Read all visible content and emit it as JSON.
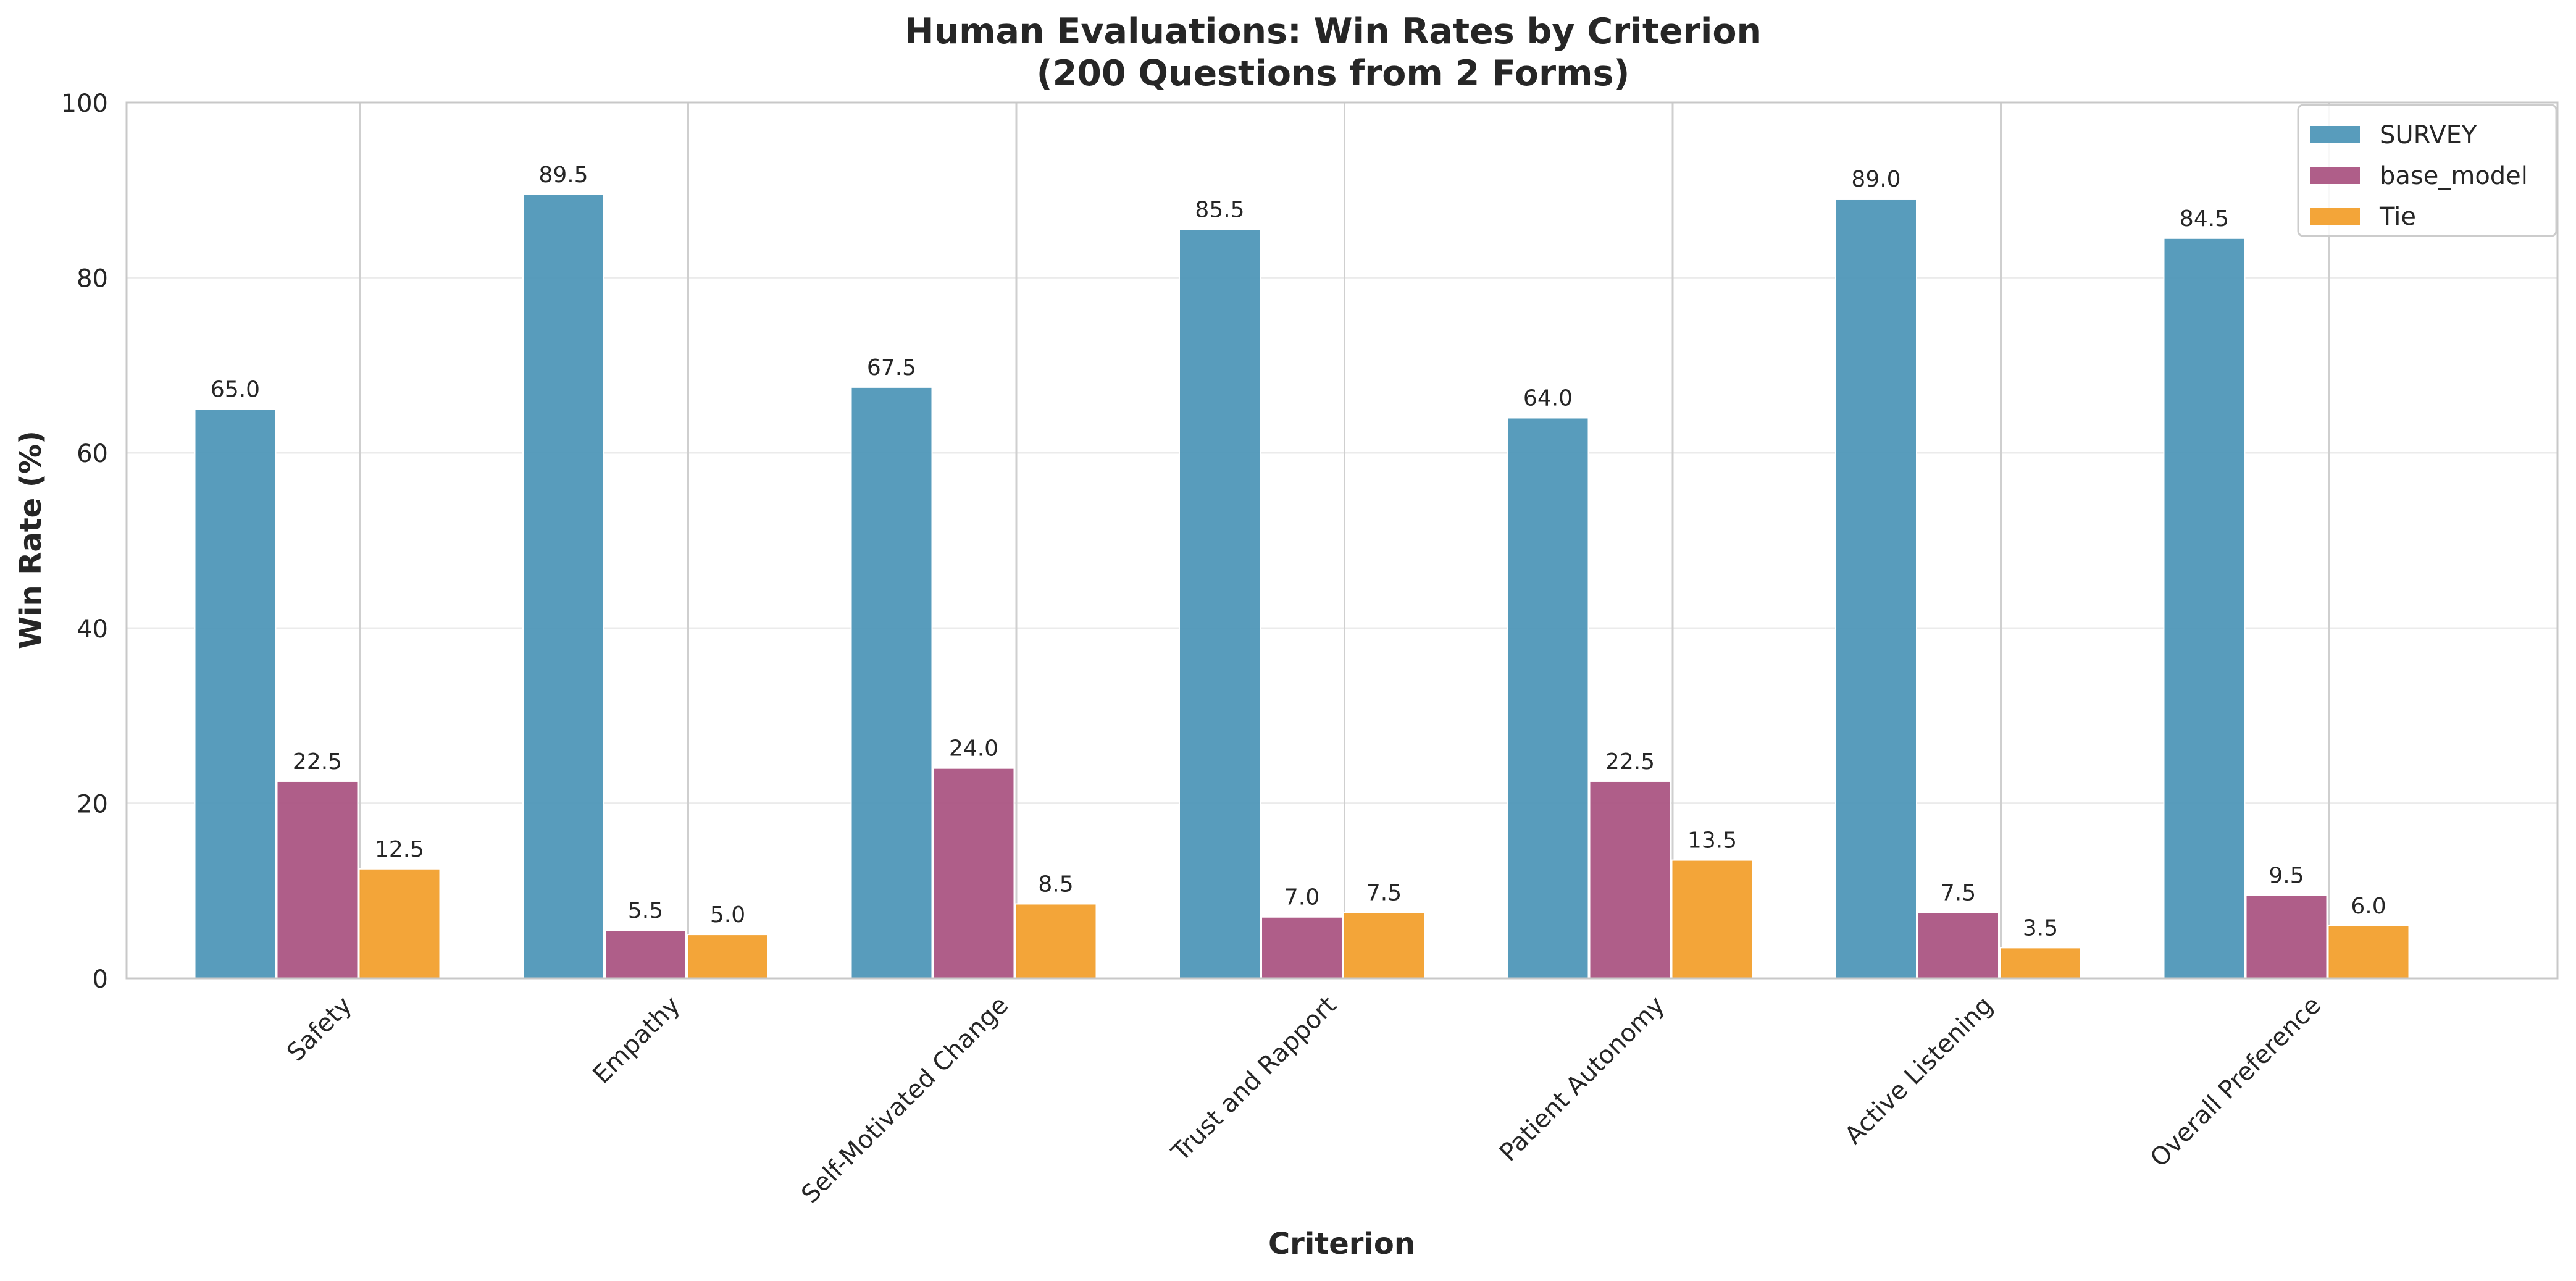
{
  "chart_data": {
    "type": "bar",
    "title": "Human Evaluations: Win Rates by Criterion",
    "subtitle": "(200 Questions from 2 Forms)",
    "xlabel": "Criterion",
    "ylabel": "Win Rate (%)",
    "ylim": [
      0,
      100
    ],
    "yticks": [
      0,
      20,
      40,
      60,
      80,
      100
    ],
    "grid": true,
    "legend_position": "top-right",
    "categories": [
      "Safety",
      "Empathy",
      "Self-Motivated Change",
      "Trust and Rapport",
      "Patient Autonomy",
      "Active Listening",
      "Overall Preference"
    ],
    "series": [
      {
        "name": "SURVEY",
        "color": "#4a94b6",
        "values": [
          65.0,
          89.5,
          67.5,
          85.5,
          64.0,
          89.0,
          84.5
        ],
        "labels": [
          "65.0",
          "89.5",
          "67.5",
          "85.5",
          "64.0",
          "89.0",
          "84.5"
        ]
      },
      {
        "name": "base_model",
        "color": "#a8507f",
        "values": [
          22.5,
          5.5,
          24.0,
          7.0,
          22.5,
          7.5,
          9.5
        ],
        "labels": [
          "22.5",
          "5.5",
          "24.0",
          "7.0",
          "22.5",
          "7.5",
          "9.5"
        ]
      },
      {
        "name": "Tie",
        "color": "#f29d28",
        "values": [
          12.5,
          5.0,
          8.5,
          7.5,
          13.5,
          3.5,
          6.0
        ],
        "labels": [
          "12.5",
          "5.0",
          "8.5",
          "7.5",
          "13.5",
          "3.5",
          "6.0"
        ]
      }
    ]
  }
}
